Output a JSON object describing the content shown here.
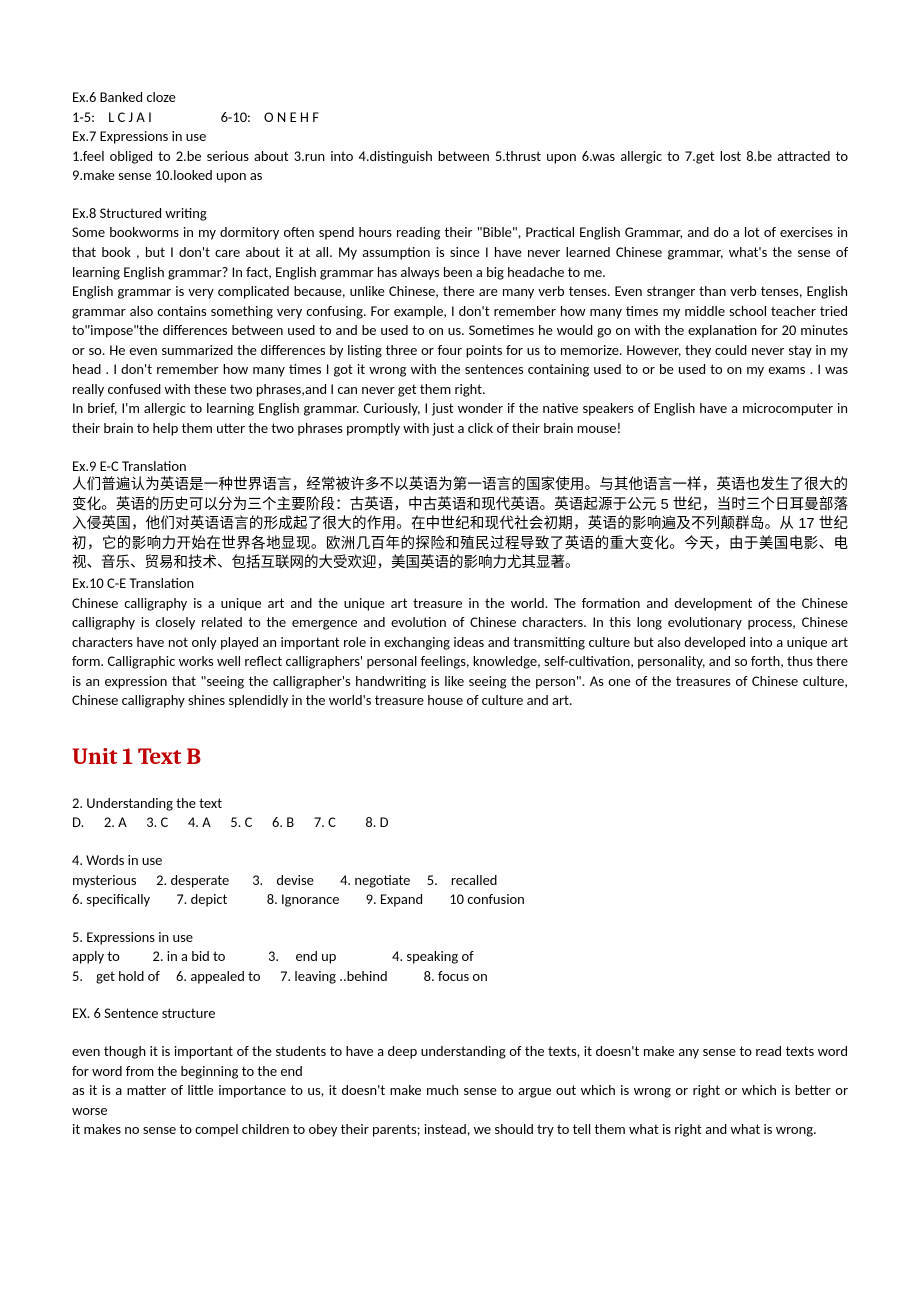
{
  "ex6": {
    "title": "Ex.6    Banked cloze",
    "line": "1-5:    L C J A I                     6-10:    O N E H F"
  },
  "ex7": {
    "title": "Ex.7    Expressions in use",
    "line": "1.feel obliged to    2.be serious about    3.run into    4.distinguish between    5.thrust upon      6.was allergic to      7.get lost    8.be attracted to    9.make sense       10.looked upon as"
  },
  "ex8": {
    "title": "Ex.8    Structured writing",
    "p1": "Some bookworms in my dormitory often spend hours reading their \"Bible\", Practical English Grammar, and do a lot of exercises in that book , but I don't care about it at all. My assumption is since I have never learned Chinese grammar, what's the sense of learning English grammar? In fact, English grammar has always been a big headache to me.",
    "p2": "English grammar is very complicated because, unlike Chinese, there are many verb tenses. Even stranger than verb tenses, English grammar also contains something very confusing. For example, I don't remember how many times my middle school teacher tried to\"impose\"the differences between used to and be used to on us. Sometimes he would go on with the explanation for 20 minutes or so. He even summarized the differences by listing three or four points for us to memorize. However, they could never stay in my head . I don't remember how many times I got it wrong with the sentences containing used to or be used to on my exams . I was really confused with these two phrases,and I can never get them right.",
    "p3": "In brief, I'm allergic to learning English grammar. Curiously, I just wonder if the native speakers of English have a microcomputer in their brain to help them utter the two phrases promptly with just a click of their brain mouse!"
  },
  "ex9": {
    "title": "Ex.9    E-C Translation",
    "p": "人们普遍认为英语是一种世界语言，经常被许多不以英语为第一语言的国家使用。与其他语言一样，英语也发生了很大的变化。英语的历史可以分为三个主要阶段：古英语，中古英语和现代英语。英语起源于公元 5 世纪，当时三个日耳曼部落入侵英国，他们对英语语言的形成起了很大的作用。在中世纪和现代社会初期，英语的影响遍及不列颠群岛。从 17 世纪初，它的影响力开始在世界各地显现。欧洲几百年的探险和殖民过程导致了英语的重大变化。今天，由于美国电影、电视、音乐、贸易和技术、包括互联网的大受欢迎，美国英语的影响力尤其显著。"
  },
  "ex10": {
    "title": "Ex.10    C-E Translation",
    "p": "Chinese calligraphy is a unique art and the unique art treasure in the world. The formation and development of the Chinese calligraphy is closely related to the emergence and evolution of Chinese characters. In this long evolutionary process, Chinese characters have not only played an important role in exchanging ideas and transmitting culture but also developed into a unique art form. Calligraphic works well reflect calligraphers' personal feelings, knowledge, self-cultivation, personality, and so forth, thus there is an expression that \"seeing the calligrapher's handwriting is like seeing the person\". As one of the treasures of Chinese culture, Chinese calligraphy shines splendidly in the world's treasure house of culture and art."
  },
  "unitHeading": "Unit 1 Text B",
  "b2": {
    "title": "2. Understanding the text",
    "line": "D.      2. A      3. C      4. A      5. C      6. B      7. C         8. D"
  },
  "b4": {
    "title": "4. Words in use",
    "l1": "mysterious      2. desperate       3.    devise        4. negotiate     5.    recalled",
    "l2": "6. specifically        7. depict            8. Ignorance        9. Expand        10 confusion"
  },
  "b5": {
    "title": "5. Expressions in use",
    "l1": "apply to          2. in a bid to             3.     end up                 4. speaking of",
    "l2": "5.    get hold of     6. appealed to      7. leaving ..behind           8. focus on"
  },
  "b6": {
    "title": "EX. 6    Sentence structure",
    "p1": "even though it is important of the students to have a deep understanding of the texts, it doesn't make any sense to read texts word for word from the beginning to the end",
    "p2": "as it is a matter of little importance to us, it doesn't make much sense to argue out which is wrong or right or which is better or worse",
    "p3": "it makes no sense to compel children to obey their parents; instead, we should try to tell them what is right and what is wrong."
  }
}
